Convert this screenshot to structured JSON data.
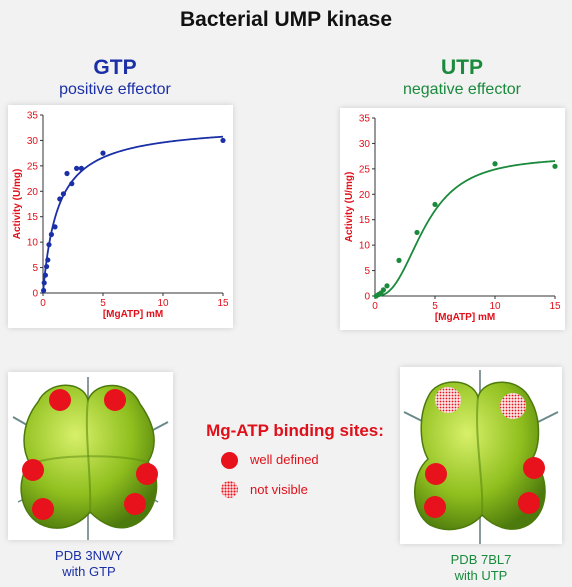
{
  "title": "Bacterial UMP kinase",
  "effectors": [
    {
      "name": "GTP",
      "role": "positive effector",
      "color": "#1b2fa6"
    },
    {
      "name": "UTP",
      "role": "negative effector",
      "color": "#1a8a3c"
    }
  ],
  "axis_color": "#e0101a",
  "chart_data": [
    {
      "type": "scatter",
      "xlabel": "[MgATP] mM",
      "ylabel": "Activity (U/mg)",
      "xlim": [
        0,
        15
      ],
      "ylim": [
        0,
        35
      ],
      "xticks": [
        "0",
        "5",
        "10",
        "15"
      ],
      "yticks": [
        "0",
        "5",
        "10",
        "15",
        "20",
        "25",
        "30",
        "35"
      ],
      "series": [
        {
          "color": "#1b2fa6",
          "x": [
            0.05,
            0.1,
            0.2,
            0.3,
            0.4,
            0.5,
            0.7,
            1.0,
            1.4,
            1.7,
            2.0,
            2.4,
            2.8,
            3.2,
            5.0,
            15.0
          ],
          "y": [
            0.5,
            2.0,
            3.5,
            5.2,
            6.5,
            9.5,
            11.5,
            13.0,
            18.5,
            19.5,
            23.5,
            21.5,
            24.5,
            24.5,
            27.5,
            30.0
          ],
          "fit": "hyperbolic",
          "vmax": 33.3,
          "km": 1.25
        }
      ]
    },
    {
      "type": "scatter",
      "xlabel": "[MgATP] mM",
      "ylabel": "Activity (U/mg)",
      "xlim": [
        0,
        15
      ],
      "ylim": [
        0,
        35
      ],
      "xticks": [
        "0",
        "5",
        "10",
        "15"
      ],
      "yticks": [
        "0",
        "5",
        "10",
        "15",
        "20",
        "25",
        "30",
        "35"
      ],
      "series": [
        {
          "color": "#1a8a3c",
          "x": [
            0.1,
            0.3,
            0.5,
            0.7,
            1.0,
            2.0,
            3.5,
            5.0,
            10.0,
            15.0
          ],
          "y": [
            0.0,
            0.3,
            0.6,
            1.2,
            2.0,
            7.0,
            12.5,
            18.0,
            26.0,
            25.5
          ],
          "fit": "hill",
          "vmax": 27.5,
          "k": 4.2,
          "n": 2.6
        }
      ]
    }
  ],
  "binding_sites": {
    "title": "Mg-ATP binding sites:",
    "legend": [
      {
        "label": "well defined",
        "style": "solid"
      },
      {
        "label": "not visible",
        "style": "dotted"
      }
    ]
  },
  "structures": [
    {
      "pdb": "PDB 3NWY",
      "ligand": "with GTP",
      "color": "#1b2fa6"
    },
    {
      "pdb": "PDB 7BL7",
      "ligand": "with UTP",
      "color": "#1a8a3c"
    }
  ]
}
